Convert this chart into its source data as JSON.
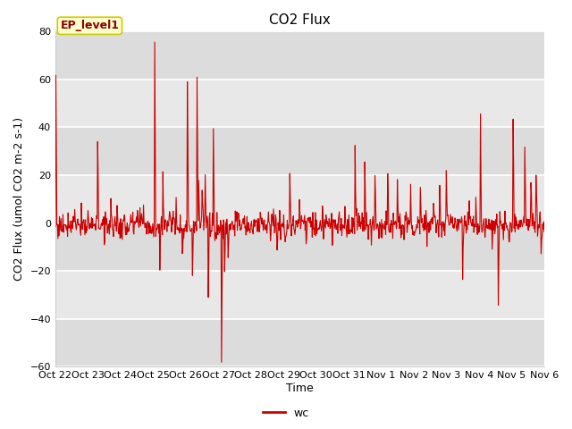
{
  "title": "CO2 Flux",
  "xlabel": "Time",
  "ylabel": "CO2 Flux (umol CO2 m-2 s-1)",
  "ylim": [
    -60,
    80
  ],
  "yticks": [
    -60,
    -40,
    -20,
    0,
    20,
    40,
    60,
    80
  ],
  "line_color": "#CC0000",
  "line_width": 0.8,
  "background_color": "#FFFFFF",
  "plot_bg_color": "#E8E8E8",
  "grid_color": "#FFFFFF",
  "legend_label": "wc",
  "annotation_text": "EP_level1",
  "x_tick_labels": [
    "Oct 22",
    "Oct 23",
    "Oct 24",
    "Oct 25",
    "Oct 26",
    "Oct 27",
    "Oct 28",
    "Oct 29",
    "Oct 30",
    "Oct 31",
    "Nov 1",
    "Nov 2",
    "Nov 3",
    "Nov 4",
    "Nov 5",
    "Nov 6"
  ],
  "title_fontsize": 11,
  "axis_label_fontsize": 9,
  "tick_fontsize": 8,
  "fig_width": 6.4,
  "fig_height": 4.8,
  "dpi": 100
}
